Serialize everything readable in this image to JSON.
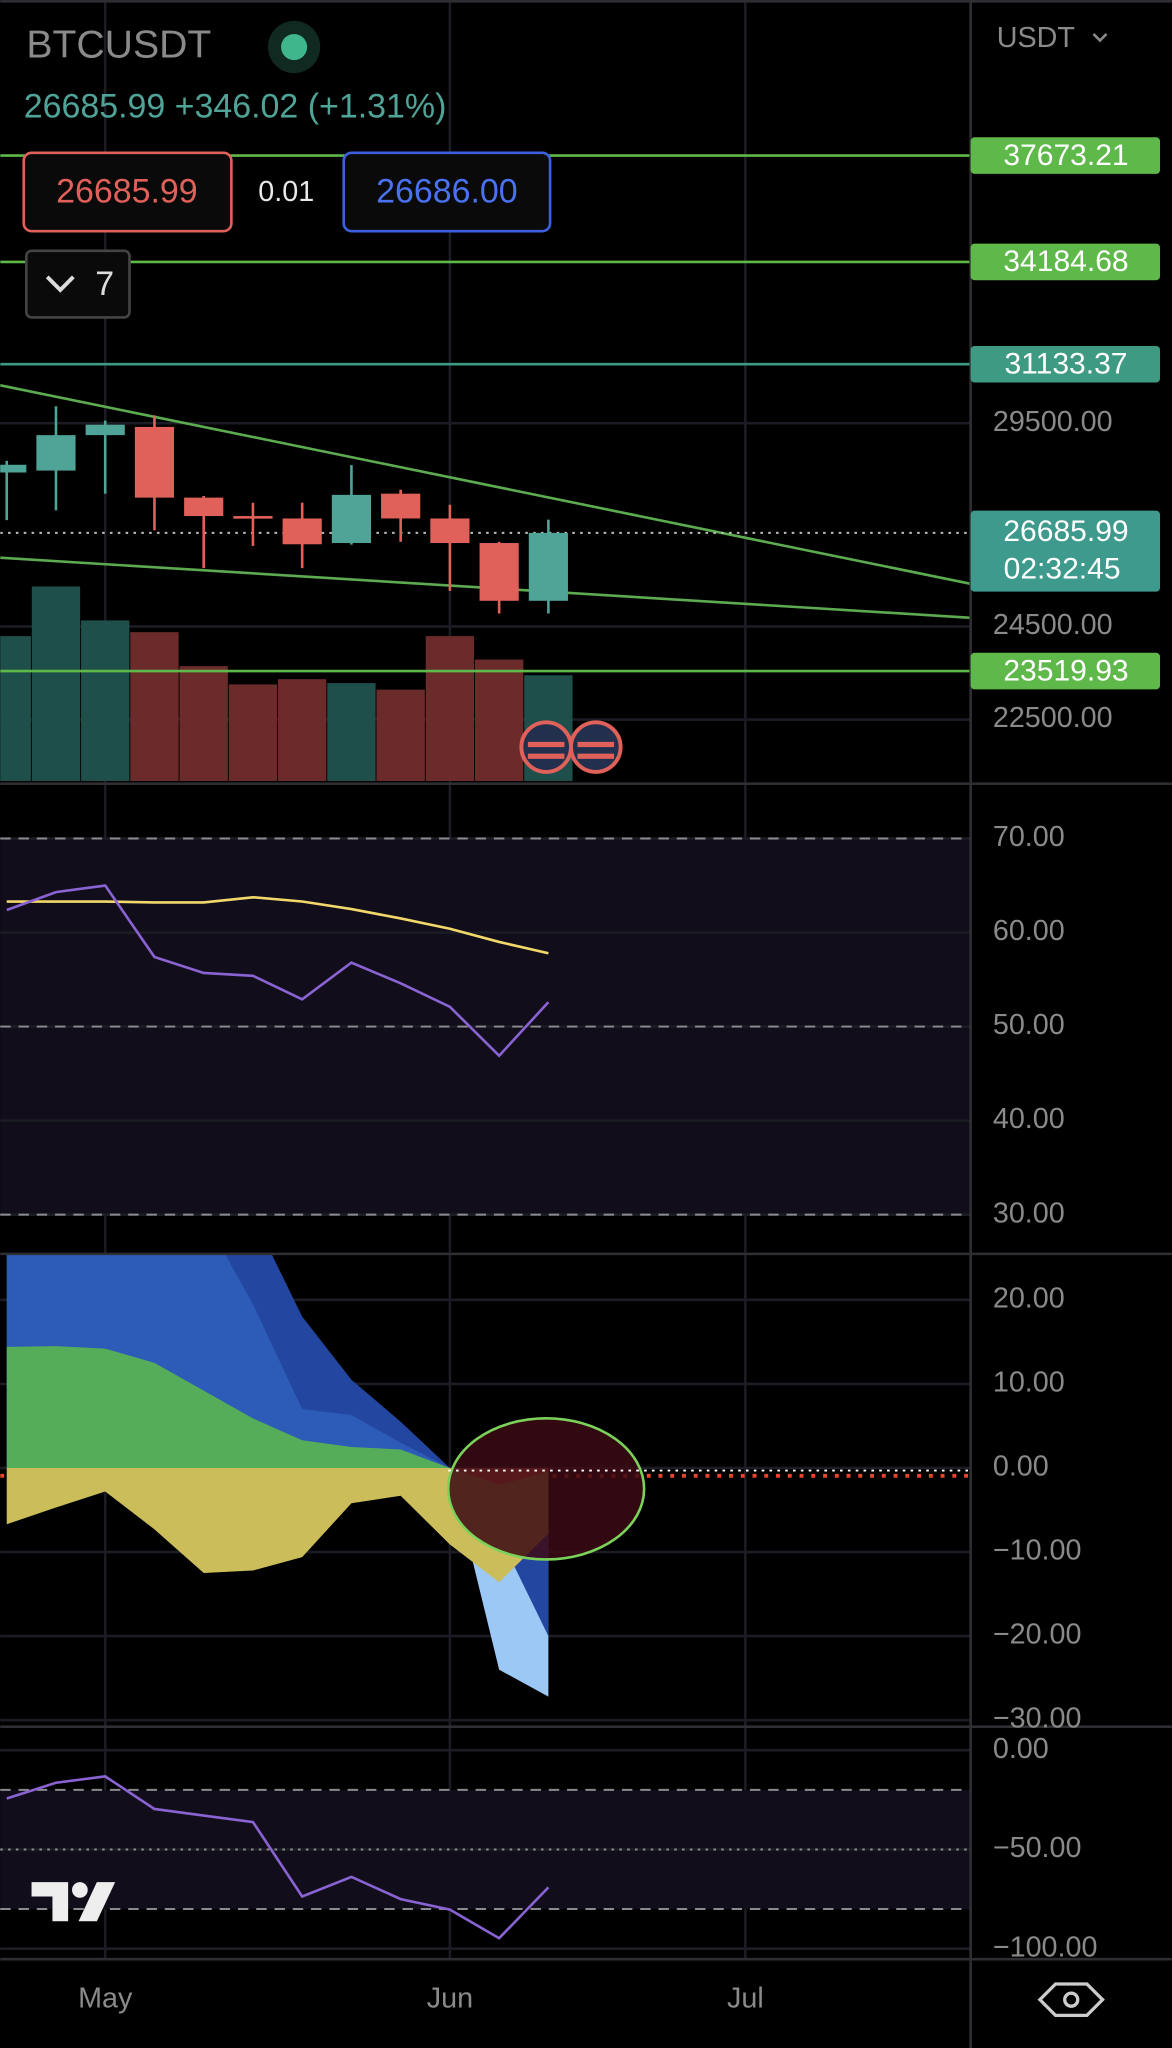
{
  "header": {
    "symbol": "BTCUSDT",
    "price_line": "26685.99 +346.02 (+1.31%)",
    "sell": "26685.99",
    "spread": "0.01",
    "buy": "26686.00",
    "indicator_count": "7",
    "currency": "USDT"
  },
  "x_axis": {
    "ticks": [
      {
        "value": 2,
        "label": "May"
      },
      {
        "value": 9,
        "label": "Jun"
      },
      {
        "value": 15,
        "label": "Jul"
      }
    ]
  },
  "chart_data": [
    {
      "type": "candlestick",
      "log_scale": true,
      "ylim": [
        21220,
        43430
      ],
      "yticks": [
        {
          "value": 29500,
          "label": "29500.00"
        },
        {
          "value": 24500,
          "label": "24500.00"
        },
        {
          "value": 22500,
          "label": "22500.00"
        }
      ],
      "open": [
        28200,
        28250,
        29180,
        29400,
        27560,
        27100,
        27040,
        26440,
        27660,
        27040,
        26440,
        25080
      ],
      "high": [
        28500,
        29960,
        29570,
        29710,
        27600,
        27430,
        27430,
        28390,
        27760,
        27380,
        26470,
        27010
      ],
      "low": [
        27000,
        27240,
        27660,
        26750,
        25840,
        26370,
        25840,
        26400,
        26470,
        25310,
        24790,
        24790
      ],
      "close": [
        28400,
        29180,
        29460,
        27560,
        27100,
        27040,
        26410,
        27630,
        27040,
        26440,
        25080,
        26685.99
      ],
      "volume": [
        111,
        149,
        123,
        114,
        88,
        74,
        78,
        75,
        70,
        111,
        93,
        81
      ],
      "up_color": "#4fa397",
      "down_color": "#e0605a",
      "volume_up_color": "#1f4f4b",
      "volume_down_color": "#6b2b2b",
      "levels": [
        37673.21,
        34184.68,
        31133.37,
        23519.93
      ],
      "level_colors": [
        "#5fb84a",
        "#5fb84a",
        "#3e9a83",
        "#5fb84a"
      ],
      "last_price": 26685.99,
      "countdown": "02:32:45"
    },
    {
      "type": "line",
      "ylim": [
        25.83,
        75.83
      ],
      "yticks": [
        {
          "value": 70,
          "label": "70.00"
        },
        {
          "value": 60,
          "label": "60.00"
        },
        {
          "value": 50,
          "label": "50.00"
        },
        {
          "value": 40,
          "label": "40.00"
        },
        {
          "value": 30,
          "label": "30.00"
        }
      ],
      "bands": [
        70,
        50,
        30
      ],
      "series": [
        {
          "color": "#f2d86a",
          "values": [
            63.3,
            63.3,
            63.3,
            63.2,
            63.2,
            63.75,
            63.3,
            62.5,
            61.5,
            60.4,
            59.0,
            57.8
          ]
        },
        {
          "color": "#8a63d2",
          "values": [
            62.4,
            64.3,
            65.0,
            57.4,
            55.7,
            55.4,
            52.9,
            56.8,
            54.6,
            52.1,
            46.9,
            52.6
          ]
        }
      ]
    },
    {
      "type": "area",
      "ylim": [
        -30.78,
        25.47
      ],
      "yticks": [
        {
          "value": 20,
          "label": "20.00"
        },
        {
          "value": 10,
          "label": "10.00"
        },
        {
          "value": 0,
          "label": "0.00"
        },
        {
          "value": -10,
          "label": "−10.00"
        },
        {
          "value": -20,
          "label": "−20.00"
        },
        {
          "value": -30,
          "label": "−30.00"
        }
      ],
      "series": [
        {
          "color": "#9cc8f5",
          "values": [
            null,
            null,
            null,
            null,
            null,
            null,
            null,
            null,
            null,
            0,
            -24,
            -27.2
          ]
        },
        {
          "color": "#2346a0",
          "values": [
            30,
            30,
            30,
            30,
            30,
            30,
            18,
            10.5,
            5.5,
            0,
            -8,
            -20
          ]
        },
        {
          "color": "#2d5bb8",
          "values": [
            30,
            30,
            30,
            30,
            30,
            19.5,
            7,
            6.3,
            3,
            0,
            null,
            null
          ]
        },
        {
          "color": "#55ad5a",
          "values": [
            14.4,
            14.5,
            14.2,
            12.5,
            9.2,
            5.9,
            3.3,
            2.5,
            2.2,
            0,
            null,
            null
          ]
        },
        {
          "color": "#cbbd5a",
          "values": [
            -6.7,
            -4.7,
            -2.8,
            -7.3,
            -12.5,
            -12.2,
            -10.6,
            -4.2,
            -3.3,
            -9.1,
            -13.6,
            -7.8
          ]
        },
        {
          "color": "#e8643c",
          "values": [
            null,
            null,
            null,
            null,
            null,
            null,
            null,
            null,
            null,
            0,
            -2,
            -0.5
          ]
        }
      ]
    },
    {
      "type": "line",
      "ylim": [
        -105.26,
        11.84
      ],
      "yticks": [
        {
          "value": 0,
          "label": "0.00"
        },
        {
          "value": -50,
          "label": "−50.00"
        },
        {
          "value": -100,
          "label": "−100.00"
        }
      ],
      "bands": [
        -20,
        -50,
        -80
      ],
      "series": [
        {
          "color": "#8a63d2",
          "values": [
            -24.3,
            -16.4,
            -13.2,
            -29.6,
            -32.9,
            -36.2,
            -73.7,
            -63.8,
            -75,
            -80.3,
            -94.7,
            -69.1
          ]
        }
      ]
    }
  ]
}
